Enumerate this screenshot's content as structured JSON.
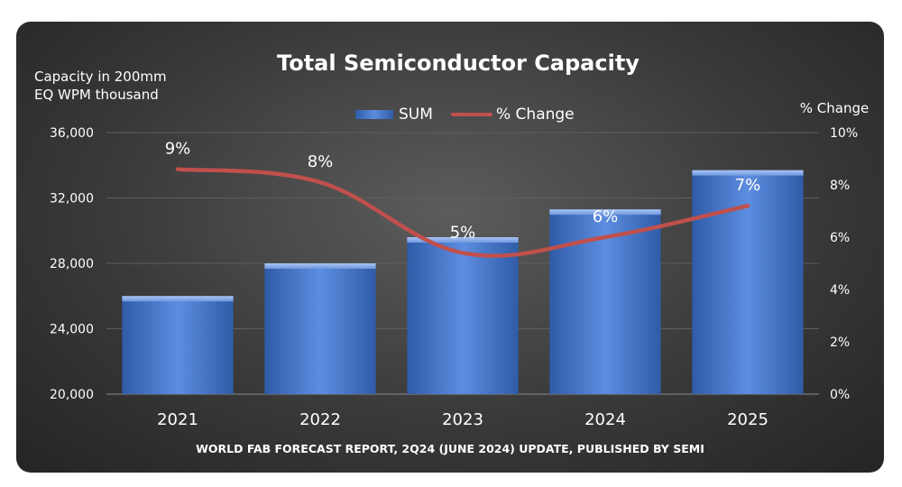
{
  "chart_data": {
    "type": "bar",
    "title": "Total Semiconductor Capacity",
    "ylabel_lines": [
      "Capacity in 200mm",
      "EQ WPM thousand"
    ],
    "y2label": "% Change",
    "footnote": "WORLD FAB FORECAST REPORT, 2Q24 (JUNE 2024) UPDATE, PUBLISHED BY SEMI",
    "legend": [
      "SUM",
      "% Change"
    ],
    "categories": [
      "2021",
      "2022",
      "2023",
      "2024",
      "2025"
    ],
    "series": [
      {
        "name": "SUM",
        "type": "bar",
        "axis": "left",
        "values": [
          26000,
          28000,
          29600,
          31300,
          33700
        ]
      },
      {
        "name": "% Change",
        "type": "line",
        "axis": "right",
        "values": [
          8.6,
          8.1,
          5.4,
          6.0,
          7.2
        ],
        "labels": [
          "9%",
          "8%",
          "5%",
          "6%",
          "7%"
        ]
      }
    ],
    "ylim": [
      20000,
      36000
    ],
    "yticks": [
      20000,
      24000,
      28000,
      32000,
      36000
    ],
    "ytick_labels": [
      "20,000",
      "24,000",
      "28,000",
      "32,000",
      "36,000"
    ],
    "y2lim": [
      0,
      10
    ],
    "y2ticks": [
      0,
      2,
      4,
      6,
      8,
      10
    ],
    "y2tick_labels": [
      "0%",
      "2%",
      "4%",
      "6%",
      "8%",
      "10%"
    ],
    "colors": {
      "bar": "#4f7ed6",
      "line": "#c0504d",
      "text": "#ffffff",
      "grid": "#5e5e5e"
    }
  }
}
